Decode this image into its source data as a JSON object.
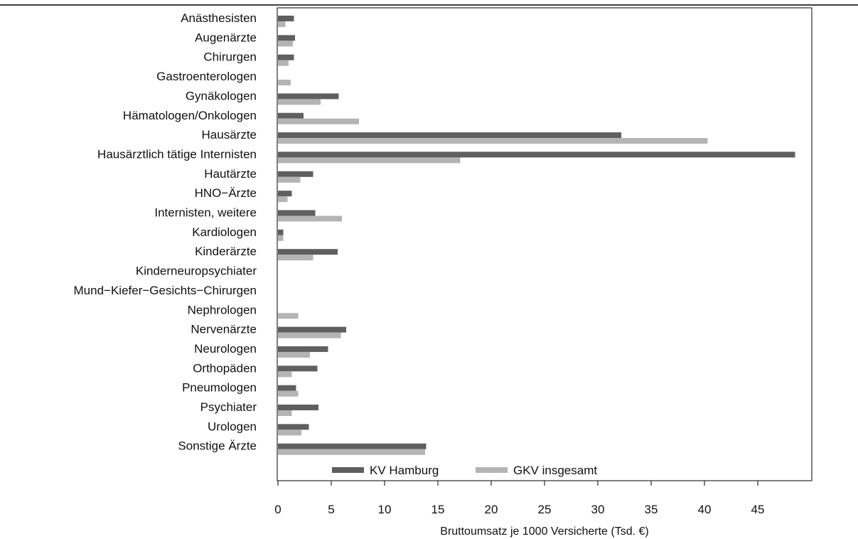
{
  "chart_data": {
    "type": "bar",
    "orientation": "horizontal",
    "xlabel": "Bruttoumsatz je 1000 Versicherte (Tsd. €)",
    "ylabel": "",
    "xlim": [
      0,
      50
    ],
    "x_ticks": [
      0,
      5,
      10,
      15,
      20,
      25,
      30,
      35,
      40,
      45
    ],
    "grid": false,
    "legend_position": "bottom",
    "colors": {
      "KV Hamburg": "#5f5f5f",
      "GKV insgesamt": "#b4b4b4"
    },
    "categories": [
      "Anästhesisten",
      "Augenärzte",
      "Chirurgen",
      "Gastroenterologen",
      "Gynäkologen",
      "Hämatologen/Onkologen",
      "Hausärzte",
      "Hausärztlich tätige Internisten",
      "Hautärzte",
      "HNO−Ärzte",
      "Internisten, weitere",
      "Kardiologen",
      "Kinderärzte",
      "Kinderneuropsychiater",
      "Mund−Kiefer−Gesichts−Chirurgen",
      "Nephrologen",
      "Nervenärzte",
      "Neurologen",
      "Orthopäden",
      "Pneumologen",
      "Psychiater",
      "Urologen",
      "Sonstige Ärzte"
    ],
    "series": [
      {
        "name": "KV Hamburg",
        "values": [
          1.5,
          1.6,
          1.5,
          0,
          5.7,
          2.4,
          32.2,
          48.5,
          3.3,
          1.3,
          3.5,
          0.5,
          5.6,
          0,
          0,
          0,
          6.4,
          4.7,
          3.7,
          1.7,
          3.8,
          2.9,
          13.9
        ]
      },
      {
        "name": "GKV insgesamt",
        "values": [
          0.7,
          1.4,
          1.0,
          1.2,
          4.0,
          7.6,
          40.3,
          17.1,
          2.1,
          0.9,
          6.0,
          0.5,
          3.3,
          0,
          0,
          1.9,
          5.9,
          3.0,
          1.3,
          1.9,
          1.3,
          2.2,
          13.8
        ]
      }
    ]
  }
}
